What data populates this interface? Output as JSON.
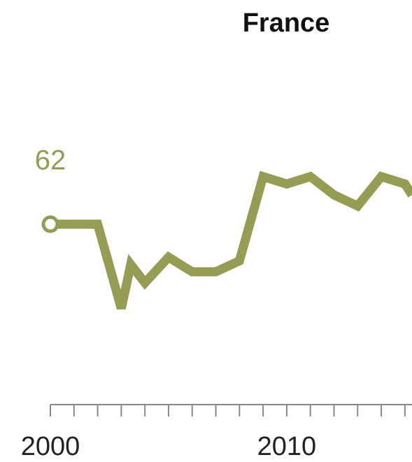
{
  "chart_data": {
    "type": "line",
    "title": "France",
    "xlabel": "",
    "ylabel": "",
    "x": [
      2000,
      2001,
      2002,
      2003,
      2003.4,
      2004,
      2005,
      2006,
      2007,
      2008,
      2009,
      2010,
      2011,
      2012,
      2013,
      2014,
      2015,
      2015.3
    ],
    "series": [
      {
        "values": [
          62,
          62,
          62,
          39,
          51,
          46,
          53,
          49,
          49,
          52,
          75,
          73,
          75,
          70,
          67,
          75,
          73,
          70
        ]
      }
    ],
    "start_label": "62",
    "x_tick_labels": [
      {
        "value": 2000,
        "label": "2000"
      },
      {
        "value": 2010,
        "label": "2010"
      }
    ],
    "x_minor_ticks": [
      2000,
      2001,
      2002,
      2003,
      2004,
      2005,
      2006,
      2007,
      2008,
      2009,
      2010,
      2011,
      2012,
      2013,
      2014,
      2015
    ],
    "xlim": [
      2000,
      2015.3
    ],
    "ylim": [
      20,
      85
    ],
    "grid": false,
    "colors": {
      "series": "#979c55",
      "axis": "#888888"
    }
  }
}
